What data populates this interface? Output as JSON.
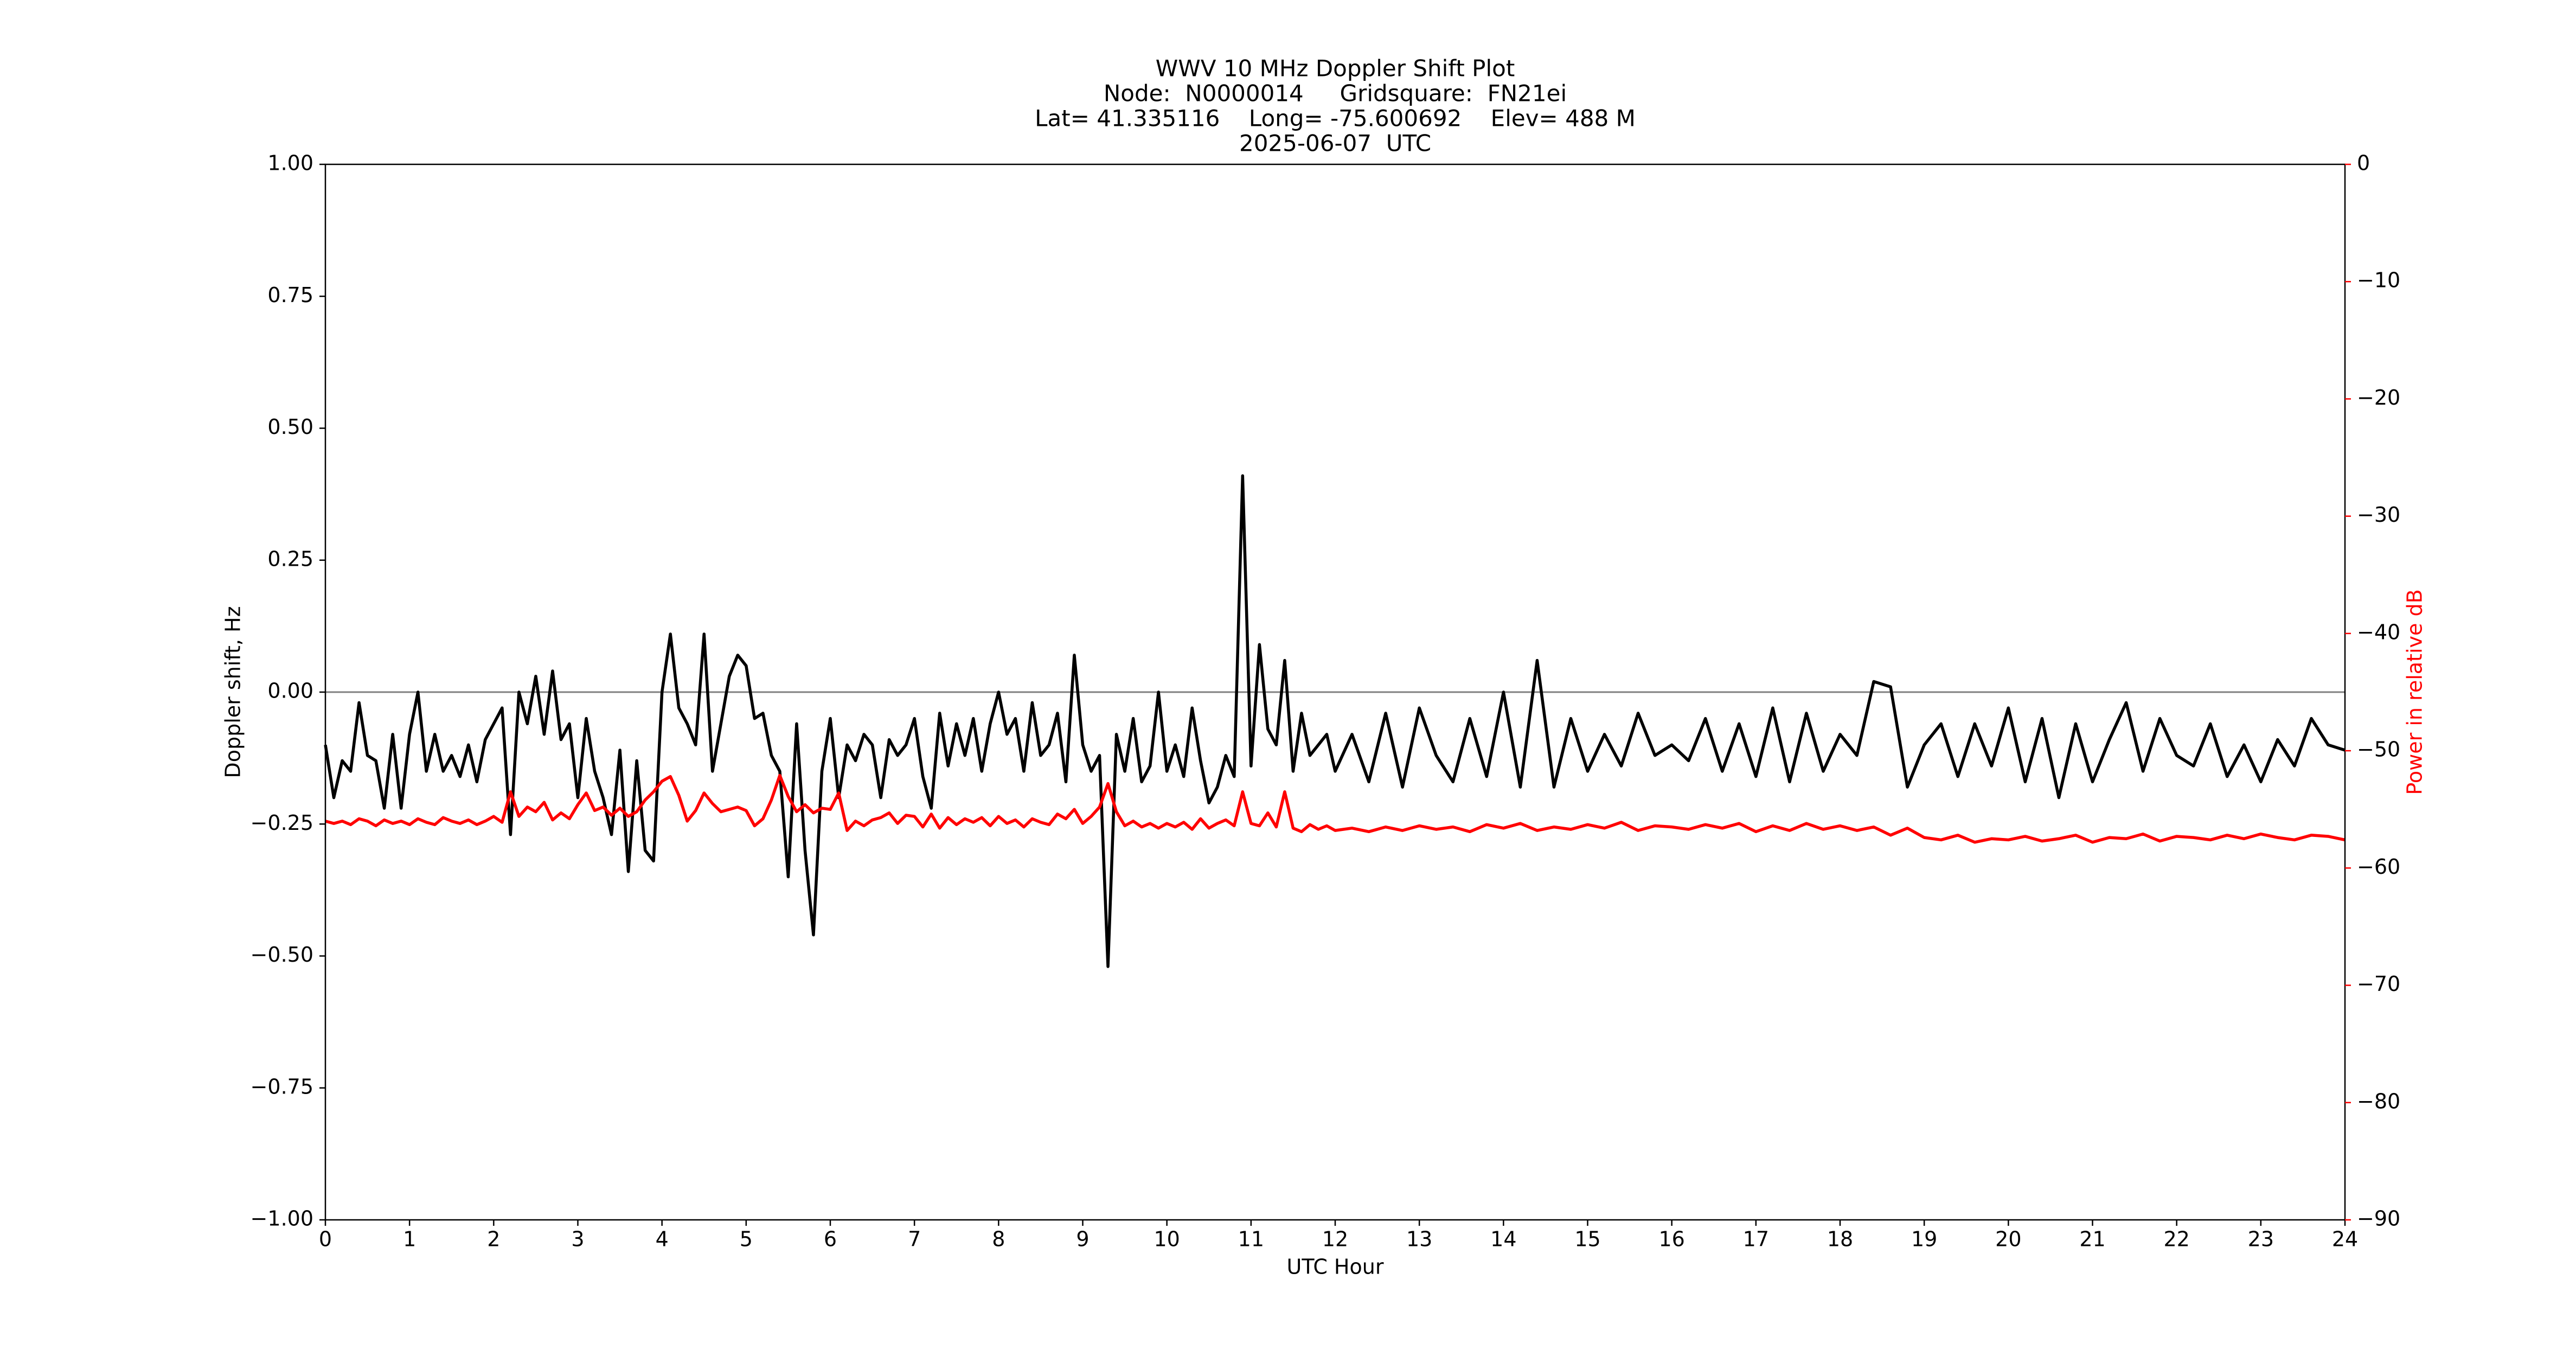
{
  "chart_data": {
    "type": "line",
    "title": [
      "WWV 10 MHz Doppler Shift Plot",
      "Node:  N0000014     Gridsquare:  FN21ei",
      "Lat= 41.335116    Long= -75.600692    Elev= 488 M",
      "2025-06-07  UTC"
    ],
    "xlabel": "UTC Hour",
    "ylabel": "Doppler shift, Hz",
    "y2label": "Power in relative dB",
    "xlim": [
      0,
      24
    ],
    "xticks": [
      0,
      1,
      2,
      3,
      4,
      5,
      6,
      7,
      8,
      9,
      10,
      11,
      12,
      13,
      14,
      15,
      16,
      17,
      18,
      19,
      20,
      21,
      22,
      23,
      24
    ],
    "ylim": [
      -1,
      1
    ],
    "yticks": [
      {
        "value": 1,
        "label": "1.00"
      },
      {
        "value": 0.75,
        "label": "0.75"
      },
      {
        "value": 0.5,
        "label": "0.50"
      },
      {
        "value": 0.25,
        "label": "0.25"
      },
      {
        "value": 0,
        "label": "0.00"
      },
      {
        "value": -0.25,
        "label": "−0.25"
      },
      {
        "value": -0.5,
        "label": "−0.50"
      },
      {
        "value": -0.75,
        "label": "−0.75"
      },
      {
        "value": -1,
        "label": "−1.00"
      }
    ],
    "y2lim": [
      -90,
      0
    ],
    "y2ticks": [
      0,
      {
        "value": -10,
        "label": "−10"
      },
      {
        "value": -20,
        "label": "−20"
      },
      {
        "value": -30,
        "label": "−30"
      },
      {
        "value": -40,
        "label": "−40"
      },
      {
        "value": -50,
        "label": "−50"
      },
      {
        "value": -60,
        "label": "−60"
      },
      {
        "value": -70,
        "label": "−70"
      },
      {
        "value": -80,
        "label": "−80"
      },
      {
        "value": -90,
        "label": "−90"
      }
    ],
    "y2color": "#ff0000",
    "reference_line": 0,
    "reference_color": "#808080",
    "x": [
      0,
      0.1,
      0.2,
      0.3,
      0.4,
      0.5,
      0.6,
      0.7,
      0.8,
      0.9,
      1,
      1.1,
      1.2,
      1.3,
      1.4,
      1.5,
      1.6,
      1.7,
      1.8,
      1.9,
      2,
      2.1,
      2.2,
      2.3,
      2.4,
      2.5,
      2.6,
      2.7,
      2.8,
      2.9,
      3,
      3.1,
      3.2,
      3.3,
      3.4,
      3.5,
      3.6,
      3.7,
      3.8,
      3.9,
      4,
      4.1,
      4.2,
      4.3,
      4.4,
      4.5,
      4.6,
      4.7,
      4.8,
      4.9,
      5,
      5.1,
      5.2,
      5.3,
      5.4,
      5.5,
      5.6,
      5.7,
      5.8,
      5.9,
      6,
      6.1,
      6.2,
      6.3,
      6.4,
      6.5,
      6.6,
      6.7,
      6.8,
      6.9,
      7,
      7.1,
      7.2,
      7.3,
      7.4,
      7.5,
      7.6,
      7.7,
      7.8,
      7.9,
      8,
      8.1,
      8.2,
      8.3,
      8.4,
      8.5,
      8.6,
      8.7,
      8.8,
      8.9,
      9,
      9.1,
      9.2,
      9.3,
      9.4,
      9.5,
      9.6,
      9.7,
      9.8,
      9.9,
      10,
      10.1,
      10.2,
      10.3,
      10.4,
      10.5,
      10.6,
      10.7,
      10.8,
      10.9,
      11,
      11.1,
      11.2,
      11.3,
      11.4,
      11.5,
      11.6,
      11.7,
      11.8,
      11.9,
      12,
      12.2,
      12.4,
      12.6,
      12.8,
      13,
      13.2,
      13.4,
      13.6,
      13.8,
      14,
      14.2,
      14.4,
      14.6,
      14.8,
      15,
      15.2,
      15.4,
      15.6,
      15.8,
      16,
      16.2,
      16.4,
      16.6,
      16.8,
      17,
      17.2,
      17.4,
      17.6,
      17.8,
      18,
      18.2,
      18.4,
      18.6,
      18.8,
      19,
      19.2,
      19.4,
      19.6,
      19.8,
      20,
      20.2,
      20.4,
      20.6,
      20.8,
      21,
      21.2,
      21.4,
      21.6,
      21.8,
      22,
      22.2,
      22.4,
      22.6,
      22.8,
      23,
      23.2,
      23.4,
      23.6,
      23.8,
      24
    ],
    "series": [
      {
        "color": "#000000",
        "values": [
          -0.1,
          -0.2,
          -0.13,
          -0.15,
          -0.02,
          -0.12,
          -0.13,
          -0.22,
          -0.08,
          -0.22,
          -0.08,
          0.0,
          -0.15,
          -0.08,
          -0.15,
          -0.12,
          -0.16,
          -0.1,
          -0.17,
          -0.09,
          -0.06,
          -0.03,
          -0.27,
          0.0,
          -0.06,
          0.03,
          -0.08,
          0.04,
          -0.09,
          -0.06,
          -0.2,
          -0.05,
          -0.15,
          -0.2,
          -0.27,
          -0.11,
          -0.34,
          -0.13,
          -0.3,
          -0.32,
          0.0,
          0.11,
          -0.03,
          -0.06,
          -0.1,
          0.11,
          -0.15,
          -0.06,
          0.03,
          0.07,
          0.05,
          -0.05,
          -0.04,
          -0.12,
          -0.15,
          -0.35,
          -0.06,
          -0.3,
          -0.46,
          -0.15,
          -0.05,
          -0.2,
          -0.1,
          -0.13,
          -0.08,
          -0.1,
          -0.2,
          -0.09,
          -0.12,
          -0.1,
          -0.05,
          -0.16,
          -0.22,
          -0.04,
          -0.14,
          -0.06,
          -0.12,
          -0.05,
          -0.15,
          -0.06,
          0.0,
          -0.08,
          -0.05,
          -0.15,
          -0.02,
          -0.12,
          -0.1,
          -0.04,
          -0.17,
          0.07,
          -0.1,
          -0.15,
          -0.12,
          -0.52,
          -0.08,
          -0.15,
          -0.05,
          -0.17,
          -0.14,
          0.0,
          -0.15,
          -0.1,
          -0.16,
          -0.03,
          -0.13,
          -0.21,
          -0.18,
          -0.12,
          -0.16,
          0.41,
          -0.14,
          0.09,
          -0.07,
          -0.1,
          0.06,
          -0.15,
          -0.04,
          -0.12,
          -0.1,
          -0.08,
          -0.15,
          -0.08,
          -0.17,
          -0.04,
          -0.18,
          -0.03,
          -0.12,
          -0.17,
          -0.05,
          -0.16,
          0.0,
          -0.18,
          0.06,
          -0.18,
          -0.05,
          -0.15,
          -0.08,
          -0.14,
          -0.04,
          -0.12,
          -0.1,
          -0.13,
          -0.05,
          -0.15,
          -0.06,
          -0.16,
          -0.03,
          -0.17,
          -0.04,
          -0.15,
          -0.08,
          -0.12,
          0.02,
          0.01,
          -0.18,
          -0.1,
          -0.06,
          -0.16,
          -0.06,
          -0.14,
          -0.03,
          -0.17,
          -0.05,
          -0.2,
          -0.06,
          -0.17,
          -0.09,
          -0.02,
          -0.15,
          -0.05,
          -0.12,
          -0.14,
          -0.06,
          -0.16,
          -0.1,
          -0.17,
          -0.09,
          -0.14,
          -0.05,
          -0.1,
          -0.11
        ]
      },
      {
        "color": "#ff0000",
        "axis": "y2",
        "values": [
          -56,
          -56.2,
          -56,
          -56.3,
          -55.8,
          -56,
          -56.4,
          -55.9,
          -56.2,
          -56,
          -56.3,
          -55.8,
          -56.1,
          -56.3,
          -55.7,
          -56,
          -56.2,
          -55.9,
          -56.3,
          -56,
          -55.6,
          -56.1,
          -53.5,
          -55.6,
          -54.8,
          -55.2,
          -54.4,
          -55.9,
          -55.3,
          -55.8,
          -54.6,
          -53.6,
          -55.1,
          -54.8,
          -55.5,
          -54.9,
          -55.6,
          -55.2,
          -54.2,
          -53.5,
          -52.6,
          -52.2,
          -53.8,
          -56,
          -55.1,
          -53.6,
          -54.5,
          -55.2,
          -55,
          -54.8,
          -55.1,
          -56.4,
          -55.8,
          -54.2,
          -52.1,
          -53.9,
          -55.2,
          -54.6,
          -55.3,
          -54.9,
          -55,
          -53.6,
          -56.8,
          -56,
          -56.4,
          -55.9,
          -55.7,
          -55.3,
          -56.2,
          -55.5,
          -55.6,
          -56.5,
          -55.4,
          -56.6,
          -55.7,
          -56.3,
          -55.8,
          -56.1,
          -55.7,
          -56.4,
          -55.6,
          -56.2,
          -55.9,
          -56.5,
          -55.8,
          -56.1,
          -56.3,
          -55.4,
          -55.8,
          -55,
          -56.2,
          -55.6,
          -54.8,
          -52.8,
          -55.2,
          -56.4,
          -56,
          -56.5,
          -56.2,
          -56.6,
          -56.2,
          -56.5,
          -56.1,
          -56.7,
          -55.8,
          -56.6,
          -56.2,
          -55.9,
          -56.4,
          -53.5,
          -56.2,
          -56.4,
          -55.3,
          -56.5,
          -53.5,
          -56.6,
          -56.9,
          -56.3,
          -56.7,
          -56.4,
          -56.8,
          -56.6,
          -56.9,
          -56.5,
          -56.8,
          -56.4,
          -56.7,
          -56.5,
          -56.9,
          -56.3,
          -56.6,
          -56.2,
          -56.8,
          -56.5,
          -56.7,
          -56.3,
          -56.6,
          -56.1,
          -56.8,
          -56.4,
          -56.5,
          -56.7,
          -56.3,
          -56.6,
          -56.2,
          -56.9,
          -56.4,
          -56.8,
          -56.2,
          -56.7,
          -56.4,
          -56.8,
          -56.5,
          -57.2,
          -56.6,
          -57.4,
          -57.6,
          -57.2,
          -57.8,
          -57.5,
          -57.6,
          -57.3,
          -57.7,
          -57.5,
          -57.2,
          -57.8,
          -57.4,
          -57.5,
          -57.1,
          -57.7,
          -57.3,
          -57.4,
          -57.6,
          -57.2,
          -57.5,
          -57.1,
          -57.4,
          -57.6,
          -57.2,
          -57.3,
          -57.6
        ]
      }
    ]
  }
}
